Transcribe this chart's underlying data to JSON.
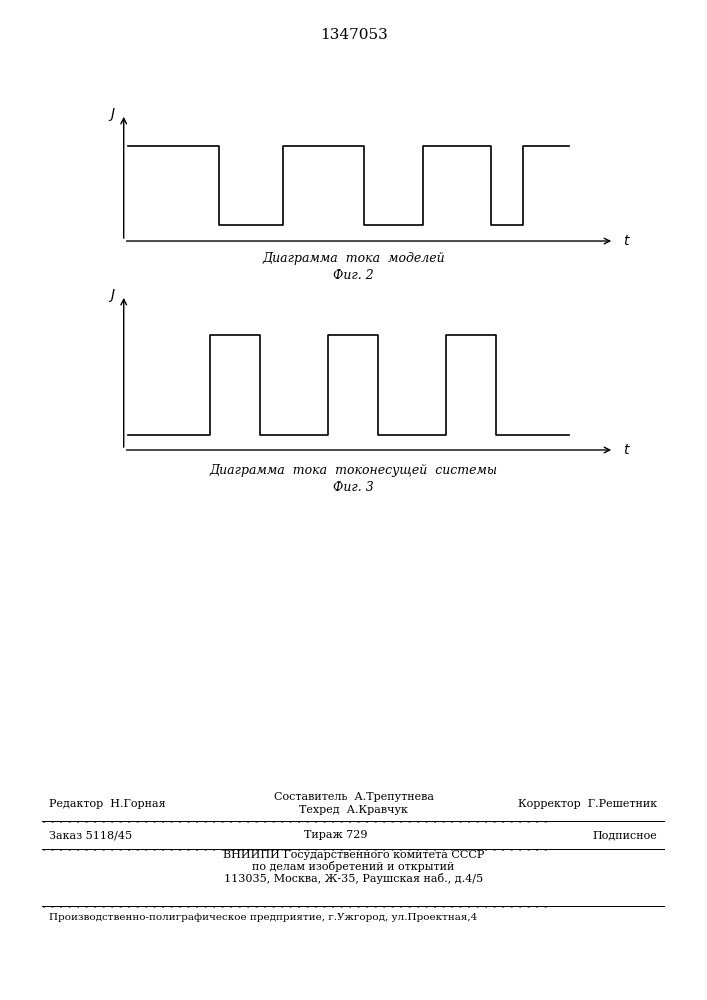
{
  "title": "1347053",
  "fig1_label_x": "t",
  "fig1_label_y": "J",
  "fig1_caption1": "Диаграмма  тока  моделей",
  "fig1_caption2": "Фиг. 2",
  "fig2_label_x": "t",
  "fig2_label_y": "J",
  "fig2_caption1": "Диаграмма  тока  токонесущей  системы",
  "fig2_caption2": "Фиг. 3",
  "footer_line1_left": "Редактор  Н.Горная",
  "footer_line1_center_top": "Составитель  А.Трепутнева",
  "footer_line1_center_bot": "Техред  А.Кравчук",
  "footer_line1_right": "Корректор  Г.Решетник",
  "footer_line2_left": "Заказ 5118/45",
  "footer_line2_center": "Тираж 729",
  "footer_line2_right": "Подписное",
  "footer_line3": "ВНИИПИ Государственного комитета СССР",
  "footer_line4": "по делам изобретений и открытий",
  "footer_line5": "113035, Москва, Ж-35, Раушская наб., д.4/5",
  "footer_bottom": "Производственно-полиграфическое предприятие, г.Ужгород, ул.Проектная,4"
}
